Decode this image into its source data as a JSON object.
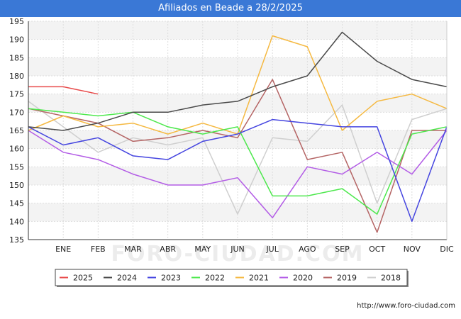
{
  "title": "Afiliados en Beade a 28/2/2025",
  "watermark": "FORO-CIUDAD.COM",
  "footer_url": "http://www.foro-ciudad.com",
  "chart_data": {
    "type": "line",
    "title": "Afiliados en Beade a 28/2/2025",
    "xlabel": "",
    "ylabel": "",
    "categories": [
      "",
      "ENE",
      "FEB",
      "MAR",
      "ABR",
      "MAY",
      "JUN",
      "JUL",
      "AGO",
      "SEP",
      "OCT",
      "NOV",
      "DIC"
    ],
    "ylim": [
      135,
      195
    ],
    "yticks": [
      135,
      140,
      145,
      150,
      155,
      160,
      165,
      170,
      175,
      180,
      185,
      190,
      195
    ],
    "grid": true,
    "legend_position": "bottom",
    "series": [
      {
        "name": "2025",
        "color": "#e84a4a",
        "values": [
          177,
          177,
          175,
          null,
          null,
          null,
          null,
          null,
          null,
          null,
          null,
          null,
          null
        ]
      },
      {
        "name": "2024",
        "color": "#4a4a4a",
        "values": [
          166,
          165,
          167,
          170,
          170,
          172,
          173,
          177,
          180,
          192,
          184,
          179,
          177
        ]
      },
      {
        "name": "2023",
        "color": "#4545e0",
        "values": [
          166,
          161,
          163,
          158,
          157,
          162,
          164,
          168,
          167,
          166,
          166,
          140,
          166
        ]
      },
      {
        "name": "2022",
        "color": "#4de84d",
        "values": [
          171,
          170,
          169,
          170,
          166,
          164,
          166,
          147,
          147,
          149,
          142,
          164,
          166
        ]
      },
      {
        "name": "2021",
        "color": "#f5b942",
        "values": [
          165,
          169,
          166,
          167,
          164,
          167,
          164,
          191,
          188,
          165,
          173,
          175,
          171
        ]
      },
      {
        "name": "2020",
        "color": "#b35de6",
        "values": [
          165,
          159,
          157,
          153,
          150,
          150,
          152,
          141,
          155,
          153,
          159,
          153,
          165
        ]
      },
      {
        "name": "2019",
        "color": "#b56565",
        "values": [
          171,
          169,
          167,
          162,
          163,
          165,
          163,
          179,
          157,
          159,
          137,
          165,
          165
        ]
      },
      {
        "name": "2018",
        "color": "#cfcfcf",
        "values": [
          173,
          166,
          159,
          163,
          161,
          163,
          142,
          163,
          162,
          172,
          145,
          168,
          171
        ]
      }
    ]
  }
}
